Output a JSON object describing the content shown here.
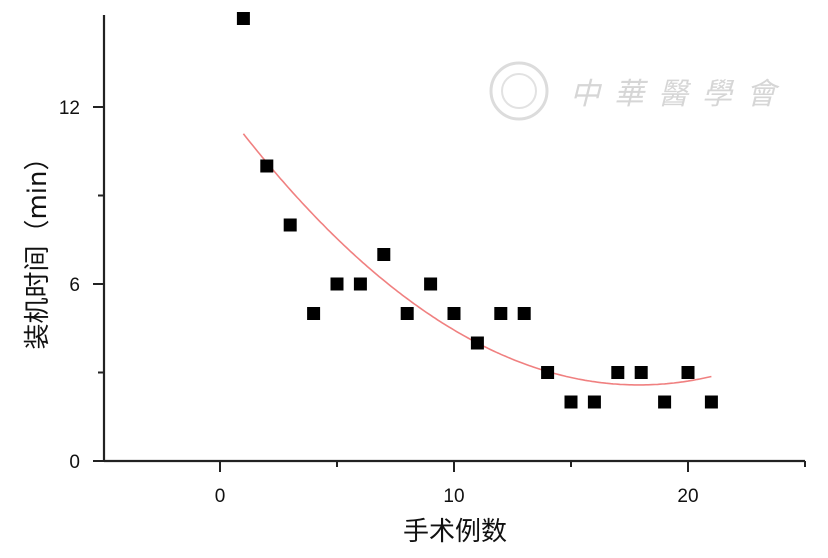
{
  "chart_data": {
    "type": "scatter",
    "title": "",
    "xlabel": "手术例数",
    "ylabel": "装机时间（min）",
    "xlim": [
      -4.9,
      25
    ],
    "ylim": [
      0,
      15.1
    ],
    "x_ticks": [
      0,
      10,
      20
    ],
    "x_tick_labels": [
      "0",
      "10",
      "20"
    ],
    "y_ticks": [
      0,
      6,
      12
    ],
    "y_tick_labels": [
      "0",
      "6",
      "12"
    ],
    "grid": false,
    "legend": "none",
    "marker_color": "#000000",
    "fit_color": "#f08080",
    "series": [
      {
        "x": [
          1,
          2,
          3,
          4,
          5,
          6,
          7,
          8,
          9,
          10,
          11,
          12,
          13,
          14,
          15,
          16,
          17,
          18,
          19,
          20,
          21
        ],
        "y": [
          15,
          10,
          8,
          5,
          6,
          6,
          7,
          5,
          6,
          5,
          4,
          5,
          5,
          3,
          2,
          2,
          3,
          3,
          2,
          3,
          2
        ]
      }
    ],
    "fit": {
      "type": "quadratic",
      "coefficients": [
        12.13,
        -1.067,
        0.0298
      ],
      "x_range": [
        1,
        21
      ]
    }
  },
  "watermark": {
    "text": "中華醫學會",
    "logo": "chinese-medical-association-seal"
  }
}
